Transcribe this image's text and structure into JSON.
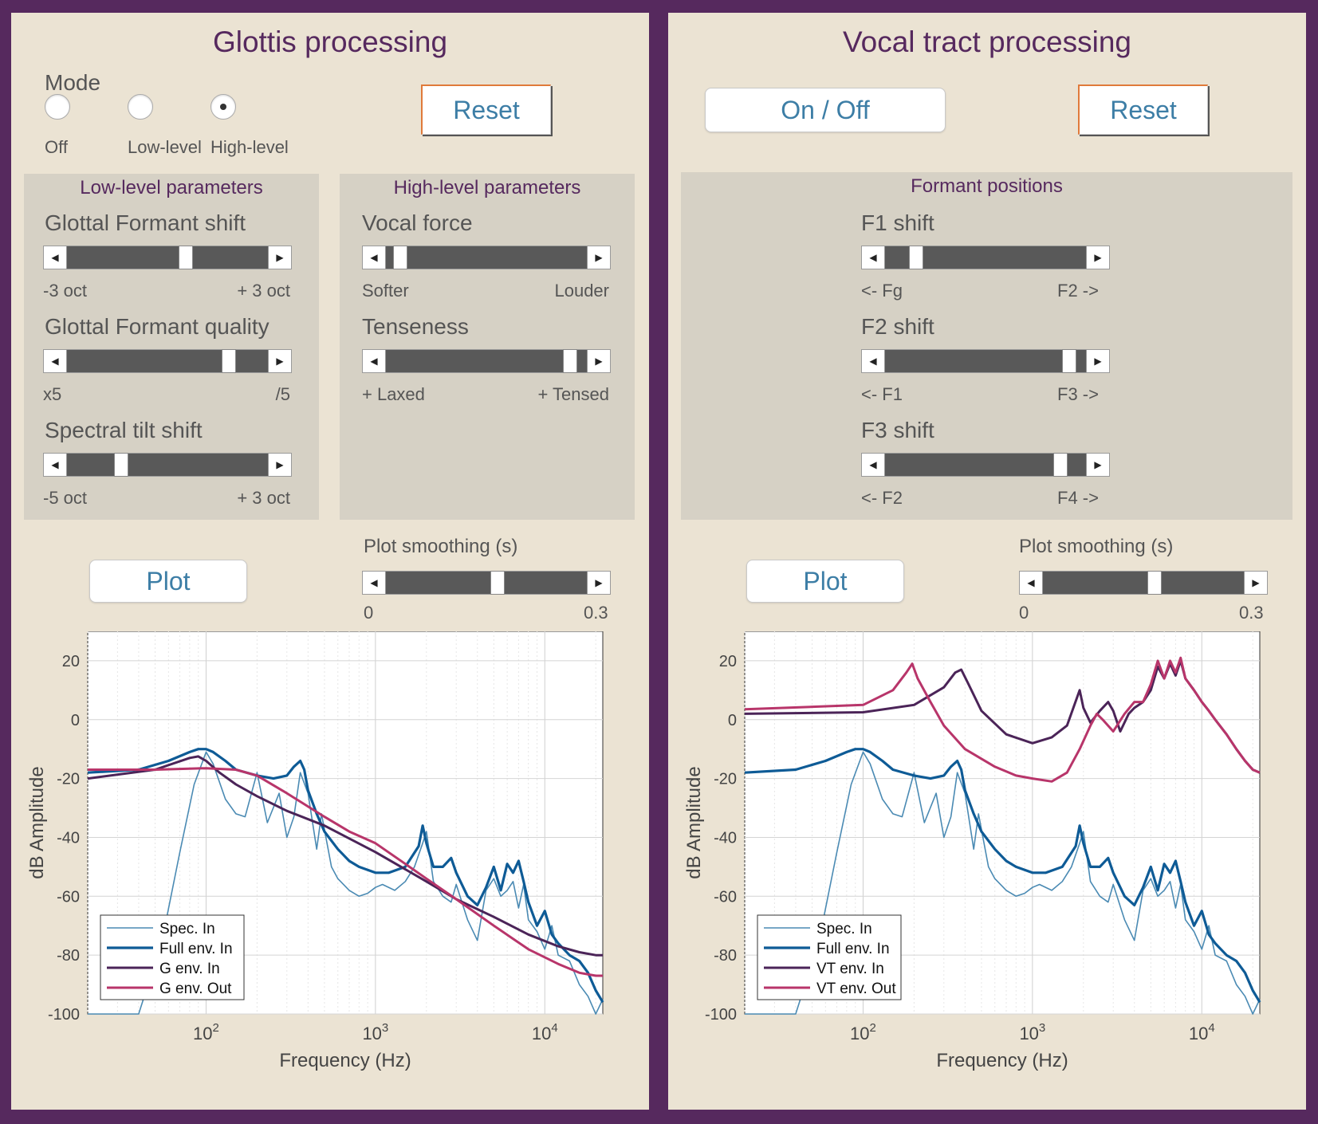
{
  "left": {
    "title": "Glottis processing",
    "mode": {
      "label": "Mode",
      "options": [
        "Off",
        "Low-level",
        "High-level"
      ],
      "selected": "High-level"
    },
    "reset_label": "Reset",
    "low_level": {
      "title": "Low-level parameters",
      "params": [
        {
          "label": "Glottal Formant shift",
          "min_label": "-3 oct",
          "max_label": "+ 3 oct",
          "value": 0.6
        },
        {
          "label": "Glottal Formant quality",
          "min_label": "x5",
          "max_label": "/5",
          "value": 0.83
        },
        {
          "label": "Spectral tilt shift",
          "min_label": "-5 oct",
          "max_label": "+ 3 oct",
          "value": 0.25
        }
      ]
    },
    "high_level": {
      "title": "High-level parameters",
      "params": [
        {
          "label": "Vocal force",
          "min_label": "Softer",
          "max_label": "Louder",
          "value": 0.04
        },
        {
          "label": "Tenseness",
          "min_label": "+ Laxed",
          "max_label": "+ Tensed",
          "value": 0.95
        }
      ]
    },
    "plot_label": "Plot",
    "smoothing": {
      "label": "Plot smoothing (s)",
      "min_label": "0",
      "max_label": "0.3",
      "value": 0.56
    }
  },
  "right": {
    "title": "Vocal tract processing",
    "onoff_label": "On / Off",
    "reset_label": "Reset",
    "formants": {
      "title": "Formant positions",
      "params": [
        {
          "label": "F1 shift",
          "min_label": "<- Fg",
          "max_label": "F2 ->",
          "value": 0.13
        },
        {
          "label": "F2 shift",
          "min_label": "<- F1",
          "max_label": "F3 ->",
          "value": 0.95
        },
        {
          "label": "F3 shift",
          "min_label": "<- F2",
          "max_label": "F4 ->",
          "value": 0.9
        }
      ]
    },
    "plot_label": "Plot",
    "smoothing": {
      "label": "Plot smoothing (s)",
      "min_label": "0",
      "max_label": "0.3",
      "value": 0.56
    }
  },
  "colors": {
    "spec_in": "#4a8ab3",
    "full_env_in": "#0e5b96",
    "g_env_in": "#4b2458",
    "env_out": "#b8356a"
  },
  "chart_data": [
    {
      "type": "line",
      "xscale": "log",
      "xlim": [
        20,
        22000
      ],
      "ylim": [
        -100,
        30
      ],
      "xlabel": "Frequency (Hz)",
      "ylabel": "dB Amplitude",
      "xticks": [
        "10^2",
        "10^3",
        "10^4"
      ],
      "yticks": [
        20,
        0,
        -20,
        -40,
        -60,
        -80,
        -100
      ],
      "grid": true,
      "legend_position": "bottom-left",
      "series": [
        {
          "name": "Spec. In",
          "x": [
            20,
            40,
            55,
            70,
            85,
            100,
            110,
            130,
            150,
            170,
            200,
            230,
            270,
            300,
            330,
            360,
            400,
            450,
            480,
            550,
            600,
            700,
            800,
            900,
            1000,
            1100,
            1300,
            1500,
            1700,
            1900,
            2000,
            2200,
            2500,
            2800,
            3000,
            3500,
            4000,
            4500,
            5000,
            5500,
            6000,
            6500,
            7000,
            7500,
            8000,
            9000,
            10000,
            11000,
            12000,
            14000,
            16000,
            18000,
            20000,
            22000
          ],
          "y": [
            -100,
            -100,
            -75,
            -45,
            -22,
            -11,
            -15,
            -27,
            -32,
            -33,
            -18,
            -35,
            -25,
            -40,
            -33,
            -18,
            -25,
            -44,
            -32,
            -50,
            -54,
            -58,
            -60,
            -59,
            -57,
            -56,
            -58,
            -55,
            -50,
            -42,
            -38,
            -55,
            -60,
            -62,
            -56,
            -68,
            -75,
            -58,
            -54,
            -60,
            -58,
            -55,
            -64,
            -56,
            -68,
            -72,
            -78,
            -70,
            -80,
            -82,
            -90,
            -94,
            -100,
            -95
          ]
        },
        {
          "name": "Full env. In",
          "x": [
            20,
            40,
            60,
            80,
            90,
            100,
            110,
            130,
            150,
            200,
            250,
            300,
            330,
            360,
            380,
            400,
            450,
            500,
            600,
            700,
            800,
            1000,
            1200,
            1500,
            1800,
            1900,
            2000,
            2200,
            2500,
            2800,
            3000,
            3500,
            4000,
            4500,
            5000,
            5500,
            6000,
            6500,
            7000,
            7500,
            8000,
            9000,
            10000,
            11000,
            12000,
            14000,
            16000,
            18000,
            20000,
            22000
          ],
          "y": [
            -18,
            -17,
            -14,
            -11,
            -10,
            -10,
            -11,
            -14,
            -17,
            -19,
            -20,
            -19,
            -16,
            -14,
            -17,
            -24,
            -32,
            -38,
            -44,
            -48,
            -50,
            -52,
            -52,
            -50,
            -43,
            -36,
            -42,
            -50,
            -50,
            -47,
            -52,
            -60,
            -63,
            -57,
            -50,
            -58,
            -49,
            -52,
            -48,
            -55,
            -62,
            -70,
            -65,
            -73,
            -76,
            -80,
            -82,
            -86,
            -92,
            -96
          ]
        },
        {
          "name": "G env. In",
          "x": [
            20,
            50,
            80,
            90,
            100,
            120,
            150,
            200,
            300,
            500,
            1000,
            2000,
            3000,
            5000,
            8000,
            12000,
            16000,
            20000,
            22000
          ],
          "y": [
            -20,
            -17,
            -13,
            -12.5,
            -14,
            -18,
            -22,
            -26,
            -31,
            -36,
            -45,
            -55,
            -61,
            -67,
            -73,
            -77,
            -79,
            -80,
            -80
          ]
        },
        {
          "name": "G env. Out",
          "x": [
            20,
            50,
            100,
            150,
            200,
            300,
            500,
            700,
            1000,
            1500,
            2000,
            3000,
            5000,
            8000,
            12000,
            16000,
            20000,
            22000
          ],
          "y": [
            -17,
            -17,
            -16.5,
            -17,
            -19,
            -25,
            -33,
            -38,
            -42,
            -49,
            -54,
            -61,
            -70,
            -78,
            -83,
            -86,
            -87,
            -87
          ]
        }
      ]
    },
    {
      "type": "line",
      "xscale": "log",
      "xlim": [
        20,
        22000
      ],
      "ylim": [
        -100,
        30
      ],
      "xlabel": "Frequency (Hz)",
      "ylabel": "dB Amplitude",
      "xticks": [
        "10^2",
        "10^3",
        "10^4"
      ],
      "yticks": [
        20,
        0,
        -20,
        -40,
        -60,
        -80,
        -100
      ],
      "grid": true,
      "legend_position": "bottom-left",
      "series": [
        {
          "name": "Spec. In",
          "x": [
            20,
            40,
            55,
            70,
            85,
            100,
            110,
            130,
            150,
            170,
            200,
            230,
            270,
            300,
            330,
            360,
            400,
            450,
            480,
            550,
            600,
            700,
            800,
            900,
            1000,
            1100,
            1300,
            1500,
            1700,
            1900,
            2000,
            2200,
            2500,
            2800,
            3000,
            3500,
            4000,
            4500,
            5000,
            5500,
            6000,
            6500,
            7000,
            7500,
            8000,
            9000,
            10000,
            11000,
            12000,
            14000,
            16000,
            18000,
            20000,
            22000
          ],
          "y": [
            -100,
            -100,
            -75,
            -45,
            -22,
            -11,
            -15,
            -27,
            -32,
            -33,
            -18,
            -35,
            -25,
            -40,
            -33,
            -18,
            -25,
            -44,
            -32,
            -50,
            -54,
            -58,
            -60,
            -59,
            -57,
            -56,
            -58,
            -55,
            -50,
            -42,
            -38,
            -55,
            -60,
            -62,
            -56,
            -68,
            -75,
            -58,
            -54,
            -60,
            -58,
            -55,
            -64,
            -56,
            -68,
            -72,
            -78,
            -70,
            -80,
            -82,
            -90,
            -94,
            -100,
            -95
          ]
        },
        {
          "name": "Full env. In",
          "x": [
            20,
            40,
            60,
            80,
            90,
            100,
            110,
            130,
            150,
            200,
            250,
            300,
            330,
            360,
            380,
            400,
            450,
            500,
            600,
            700,
            800,
            1000,
            1200,
            1500,
            1800,
            1900,
            2000,
            2200,
            2500,
            2800,
            3000,
            3500,
            4000,
            4500,
            5000,
            5500,
            6000,
            6500,
            7000,
            7500,
            8000,
            9000,
            10000,
            11000,
            12000,
            14000,
            16000,
            18000,
            20000,
            22000
          ],
          "y": [
            -18,
            -17,
            -14,
            -11,
            -10,
            -10,
            -11,
            -14,
            -17,
            -19,
            -20,
            -19,
            -16,
            -14,
            -17,
            -24,
            -32,
            -38,
            -44,
            -48,
            -50,
            -52,
            -52,
            -50,
            -43,
            -36,
            -42,
            -50,
            -50,
            -47,
            -52,
            -60,
            -63,
            -57,
            -50,
            -58,
            -49,
            -52,
            -48,
            -55,
            -62,
            -70,
            -65,
            -73,
            -76,
            -80,
            -82,
            -86,
            -92,
            -96
          ]
        },
        {
          "name": "VT env. In",
          "x": [
            20,
            100,
            200,
            300,
            350,
            380,
            420,
            500,
            700,
            1000,
            1300,
            1600,
            1900,
            2000,
            2200,
            2500,
            2800,
            3000,
            3300,
            3700,
            4000,
            4500,
            5000,
            5500,
            6000,
            6500,
            7000,
            7500,
            8000,
            9000,
            10000,
            11000,
            12000,
            14000,
            16000,
            18000,
            20000,
            22000
          ],
          "y": [
            2,
            2.5,
            5,
            11,
            16,
            17,
            12,
            3,
            -5,
            -8,
            -6,
            -2,
            10,
            4,
            -1,
            3,
            6,
            3,
            -4,
            2,
            4,
            6,
            10,
            18,
            14,
            19,
            15,
            20,
            14,
            10,
            6,
            3,
            0,
            -5,
            -10,
            -14,
            -17,
            -18
          ]
        },
        {
          "name": "VT env. Out",
          "x": [
            20,
            100,
            150,
            180,
            195,
            210,
            250,
            300,
            400,
            600,
            800,
            1000,
            1300,
            1600,
            1900,
            2200,
            2400,
            2600,
            3000,
            3500,
            4000,
            4500,
            5000,
            5500,
            6000,
            6500,
            7000,
            7500,
            8000,
            9000,
            10000,
            11000,
            12000,
            14000,
            16000,
            18000,
            20000,
            22000
          ],
          "y": [
            3.5,
            5,
            10,
            16,
            19,
            14,
            6,
            -2,
            -10,
            -16,
            -19,
            -20,
            -21,
            -18,
            -10,
            -2,
            2,
            0,
            -4,
            2,
            6,
            6,
            12,
            20,
            14,
            20,
            16,
            21,
            14,
            10,
            6,
            3,
            0,
            -5,
            -10,
            -14,
            -17,
            -18
          ]
        }
      ]
    }
  ]
}
